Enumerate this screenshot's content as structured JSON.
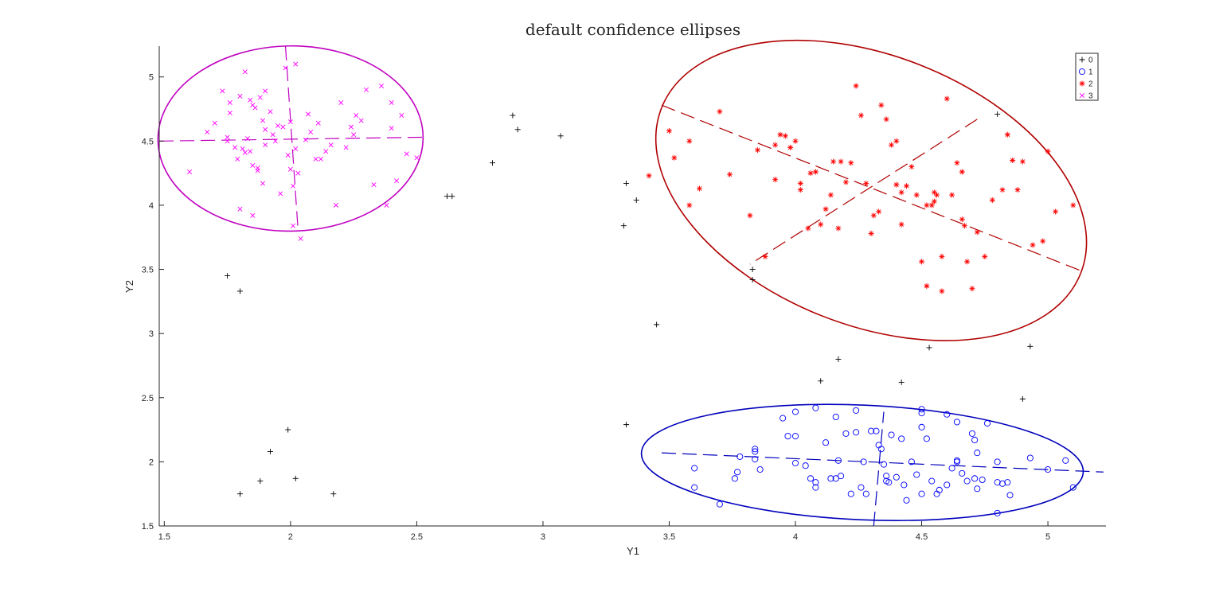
{
  "chart_data": {
    "type": "scatter",
    "title": "default confidence ellipses",
    "xlabel": "Y1",
    "ylabel": "Y2",
    "xlim": [
      1.48,
      5.23
    ],
    "ylim": [
      1.5,
      5.24
    ],
    "xticks": [
      1.5,
      2,
      2.5,
      3,
      3.5,
      4,
      4.5,
      5
    ],
    "xtick_labels": [
      "1.5",
      "2",
      "2.5",
      "3",
      "3.5",
      "4",
      "4.5",
      "5"
    ],
    "yticks": [
      1.5,
      2,
      2.5,
      3,
      3.5,
      4,
      4.5,
      5
    ],
    "ytick_labels": [
      "1.5",
      "2",
      "2.5",
      "3",
      "3.5",
      "4",
      "4.5",
      "5"
    ],
    "grid": false,
    "legend_position": "top-right",
    "series": [
      {
        "name": "0",
        "marker": "plus",
        "color": "#000000",
        "points": [
          [
            1.75,
            3.45
          ],
          [
            1.8,
            3.33
          ],
          [
            1.99,
            2.25
          ],
          [
            1.92,
            2.08
          ],
          [
            1.88,
            1.85
          ],
          [
            2.02,
            1.87
          ],
          [
            1.8,
            1.75
          ],
          [
            2.17,
            1.75
          ],
          [
            2.62,
            4.07
          ],
          [
            2.64,
            4.07
          ],
          [
            2.8,
            4.33
          ],
          [
            2.88,
            4.7
          ],
          [
            2.9,
            4.59
          ],
          [
            3.07,
            4.54
          ],
          [
            3.32,
            3.84
          ],
          [
            3.33,
            4.17
          ],
          [
            3.37,
            4.04
          ],
          [
            3.45,
            3.07
          ],
          [
            3.33,
            2.29
          ],
          [
            3.83,
            3.5
          ],
          [
            3.83,
            3.42
          ],
          [
            4.17,
            2.8
          ],
          [
            4.1,
            2.63
          ],
          [
            4.42,
            2.62
          ],
          [
            4.53,
            2.89
          ],
          [
            4.93,
            2.9
          ],
          [
            4.9,
            2.49
          ],
          [
            4.8,
            4.71
          ]
        ]
      },
      {
        "name": "1",
        "marker": "circle",
        "color": "#0000ff",
        "points": [
          [
            3.6,
            1.95
          ],
          [
            3.6,
            1.8
          ],
          [
            3.7,
            1.67
          ],
          [
            3.76,
            1.87
          ],
          [
            3.77,
            1.92
          ],
          [
            3.78,
            2.04
          ],
          [
            3.84,
            2.02
          ],
          [
            3.84,
            2.08
          ],
          [
            3.84,
            2.1
          ],
          [
            3.86,
            1.94
          ],
          [
            3.95,
            2.34
          ],
          [
            3.97,
            2.2
          ],
          [
            4.0,
            2.2
          ],
          [
            4.0,
            2.39
          ],
          [
            4.0,
            1.99
          ],
          [
            4.04,
            1.97
          ],
          [
            4.06,
            1.87
          ],
          [
            4.08,
            1.84
          ],
          [
            4.08,
            1.8
          ],
          [
            4.08,
            2.42
          ],
          [
            4.12,
            2.15
          ],
          [
            4.14,
            1.87
          ],
          [
            4.16,
            1.87
          ],
          [
            4.16,
            2.35
          ],
          [
            4.17,
            2.01
          ],
          [
            4.18,
            1.89
          ],
          [
            4.2,
            2.22
          ],
          [
            4.22,
            1.75
          ],
          [
            4.24,
            2.23
          ],
          [
            4.24,
            2.4
          ],
          [
            4.26,
            1.8
          ],
          [
            4.27,
            2.0
          ],
          [
            4.28,
            1.75
          ],
          [
            4.3,
            2.24
          ],
          [
            4.32,
            2.24
          ],
          [
            4.33,
            2.13
          ],
          [
            4.34,
            2.1
          ],
          [
            4.35,
            1.98
          ],
          [
            4.36,
            1.85
          ],
          [
            4.36,
            1.89
          ],
          [
            4.37,
            1.84
          ],
          [
            4.38,
            2.21
          ],
          [
            4.4,
            1.88
          ],
          [
            4.42,
            2.18
          ],
          [
            4.43,
            1.82
          ],
          [
            4.44,
            1.7
          ],
          [
            4.46,
            2.0
          ],
          [
            4.48,
            1.9
          ],
          [
            4.5,
            1.75
          ],
          [
            4.5,
            2.27
          ],
          [
            4.5,
            2.38
          ],
          [
            4.5,
            2.41
          ],
          [
            4.52,
            2.18
          ],
          [
            4.54,
            1.85
          ],
          [
            4.56,
            1.75
          ],
          [
            4.57,
            1.78
          ],
          [
            4.6,
            2.37
          ],
          [
            4.6,
            1.82
          ],
          [
            4.62,
            1.95
          ],
          [
            4.64,
            2.31
          ],
          [
            4.64,
            2.01
          ],
          [
            4.64,
            2.0
          ],
          [
            4.66,
            1.91
          ],
          [
            4.68,
            1.85
          ],
          [
            4.7,
            2.22
          ],
          [
            4.71,
            1.87
          ],
          [
            4.71,
            2.17
          ],
          [
            4.72,
            2.07
          ],
          [
            4.72,
            1.79
          ],
          [
            4.74,
            1.86
          ],
          [
            4.76,
            2.3
          ],
          [
            4.8,
            1.84
          ],
          [
            4.8,
            2.0
          ],
          [
            4.8,
            1.6
          ],
          [
            4.82,
            1.83
          ],
          [
            4.84,
            1.84
          ],
          [
            4.85,
            1.74
          ],
          [
            4.93,
            2.03
          ],
          [
            5.0,
            1.94
          ],
          [
            5.07,
            2.01
          ],
          [
            5.1,
            1.8
          ]
        ]
      },
      {
        "name": "2",
        "marker": "asterisk",
        "color": "#ff0000",
        "points": [
          [
            3.42,
            4.23
          ],
          [
            3.5,
            4.58
          ],
          [
            3.52,
            4.37
          ],
          [
            3.58,
            4.5
          ],
          [
            3.58,
            4.0
          ],
          [
            3.62,
            4.13
          ],
          [
            3.7,
            4.73
          ],
          [
            3.74,
            4.24
          ],
          [
            3.82,
            3.92
          ],
          [
            3.85,
            4.43
          ],
          [
            3.88,
            3.6
          ],
          [
            3.92,
            4.47
          ],
          [
            3.92,
            4.2
          ],
          [
            3.94,
            4.55
          ],
          [
            3.96,
            4.54
          ],
          [
            3.98,
            4.45
          ],
          [
            4.0,
            4.5
          ],
          [
            4.02,
            4.17
          ],
          [
            4.02,
            4.12
          ],
          [
            4.05,
            3.82
          ],
          [
            4.06,
            4.25
          ],
          [
            4.08,
            4.26
          ],
          [
            4.1,
            3.85
          ],
          [
            4.12,
            3.97
          ],
          [
            4.14,
            4.08
          ],
          [
            4.15,
            4.34
          ],
          [
            4.17,
            3.82
          ],
          [
            4.18,
            4.34
          ],
          [
            4.2,
            4.18
          ],
          [
            4.22,
            4.33
          ],
          [
            4.24,
            4.93
          ],
          [
            4.26,
            4.7
          ],
          [
            4.28,
            4.17
          ],
          [
            4.3,
            3.78
          ],
          [
            4.31,
            3.92
          ],
          [
            4.33,
            3.95
          ],
          [
            4.34,
            4.78
          ],
          [
            4.36,
            4.67
          ],
          [
            4.38,
            4.47
          ],
          [
            4.4,
            4.5
          ],
          [
            4.4,
            4.16
          ],
          [
            4.42,
            3.85
          ],
          [
            4.42,
            4.1
          ],
          [
            4.44,
            4.15
          ],
          [
            4.46,
            4.3
          ],
          [
            4.48,
            4.08
          ],
          [
            4.5,
            3.56
          ],
          [
            4.52,
            3.37
          ],
          [
            4.52,
            4.0
          ],
          [
            4.54,
            4.0
          ],
          [
            4.55,
            4.03
          ],
          [
            4.55,
            4.1
          ],
          [
            4.56,
            4.08
          ],
          [
            4.58,
            3.33
          ],
          [
            4.58,
            3.6
          ],
          [
            4.6,
            4.83
          ],
          [
            4.62,
            4.08
          ],
          [
            4.64,
            4.33
          ],
          [
            4.66,
            3.89
          ],
          [
            4.66,
            4.26
          ],
          [
            4.67,
            3.84
          ],
          [
            4.68,
            3.56
          ],
          [
            4.7,
            3.35
          ],
          [
            4.72,
            3.79
          ],
          [
            4.75,
            3.6
          ],
          [
            4.78,
            4.04
          ],
          [
            4.82,
            4.12
          ],
          [
            4.84,
            4.55
          ],
          [
            4.86,
            4.35
          ],
          [
            4.88,
            4.12
          ],
          [
            4.9,
            4.34
          ],
          [
            4.94,
            3.69
          ],
          [
            4.98,
            3.72
          ],
          [
            5.0,
            4.42
          ],
          [
            5.03,
            3.95
          ],
          [
            5.1,
            4.0
          ]
        ]
      },
      {
        "name": "3",
        "marker": "cross",
        "color": "#ff00ff",
        "points": [
          [
            1.6,
            4.26
          ],
          [
            1.67,
            4.57
          ],
          [
            1.7,
            4.64
          ],
          [
            1.73,
            4.89
          ],
          [
            1.75,
            4.5
          ],
          [
            1.75,
            4.53
          ],
          [
            1.76,
            4.8
          ],
          [
            1.76,
            4.72
          ],
          [
            1.78,
            4.45
          ],
          [
            1.79,
            4.36
          ],
          [
            1.8,
            4.85
          ],
          [
            1.8,
            3.97
          ],
          [
            1.81,
            4.44
          ],
          [
            1.82,
            4.41
          ],
          [
            1.82,
            5.04
          ],
          [
            1.83,
            4.52
          ],
          [
            1.84,
            4.42
          ],
          [
            1.84,
            4.82
          ],
          [
            1.85,
            4.78
          ],
          [
            1.85,
            4.31
          ],
          [
            1.85,
            3.92
          ],
          [
            1.86,
            4.76
          ],
          [
            1.87,
            4.27
          ],
          [
            1.87,
            4.29
          ],
          [
            1.88,
            4.84
          ],
          [
            1.89,
            4.66
          ],
          [
            1.89,
            4.17
          ],
          [
            1.9,
            4.89
          ],
          [
            1.9,
            4.59
          ],
          [
            1.9,
            4.47
          ],
          [
            1.92,
            4.73
          ],
          [
            1.93,
            4.55
          ],
          [
            1.94,
            4.5
          ],
          [
            1.95,
            4.62
          ],
          [
            1.96,
            4.09
          ],
          [
            1.97,
            4.61
          ],
          [
            1.98,
            5.07
          ],
          [
            1.99,
            4.39
          ],
          [
            2.0,
            4.65
          ],
          [
            2.0,
            4.28
          ],
          [
            2.01,
            3.84
          ],
          [
            2.01,
            4.15
          ],
          [
            2.02,
            4.44
          ],
          [
            2.02,
            5.1
          ],
          [
            2.03,
            4.25
          ],
          [
            2.04,
            3.74
          ],
          [
            2.06,
            4.51
          ],
          [
            2.07,
            4.71
          ],
          [
            2.08,
            4.57
          ],
          [
            2.1,
            4.36
          ],
          [
            2.11,
            4.64
          ],
          [
            2.12,
            4.36
          ],
          [
            2.14,
            4.42
          ],
          [
            2.16,
            4.47
          ],
          [
            2.18,
            4.0
          ],
          [
            2.2,
            4.8
          ],
          [
            2.22,
            4.45
          ],
          [
            2.24,
            4.61
          ],
          [
            2.25,
            4.55
          ],
          [
            2.26,
            4.7
          ],
          [
            2.28,
            4.66
          ],
          [
            2.3,
            4.9
          ],
          [
            2.33,
            4.16
          ],
          [
            2.36,
            4.93
          ],
          [
            2.38,
            4.0
          ],
          [
            2.4,
            4.8
          ],
          [
            2.4,
            4.6
          ],
          [
            2.42,
            4.19
          ],
          [
            2.44,
            4.7
          ],
          [
            2.46,
            4.4
          ],
          [
            2.5,
            4.37
          ]
        ]
      }
    ],
    "ellipses": [
      {
        "series": "1",
        "color": "#0000bb",
        "center": [
          4.265,
          1.995
        ],
        "major_endpoints": [
          [
            3.47,
            2.07
          ],
          [
            5.22,
            1.92
          ]
        ],
        "minor_endpoints": [
          [
            4.31,
            1.5
          ],
          [
            4.35,
            2.39
          ]
        ]
      },
      {
        "series": "2",
        "color": "#b00000",
        "center": [
          4.3,
          4.115
        ],
        "major_endpoints": [
          [
            3.47,
            4.78
          ],
          [
            5.13,
            3.49
          ]
        ],
        "minor_endpoints": [
          [
            4.72,
            4.67
          ],
          [
            3.82,
            3.54
          ]
        ]
      },
      {
        "series": "3",
        "color": "#c000c0",
        "center": [
          2.0,
          4.52
        ],
        "major_endpoints": [
          [
            1.48,
            4.5
          ],
          [
            2.53,
            4.53
          ]
        ],
        "minor_endpoints": [
          [
            1.98,
            5.24
          ],
          [
            2.03,
            3.8
          ]
        ]
      }
    ]
  }
}
